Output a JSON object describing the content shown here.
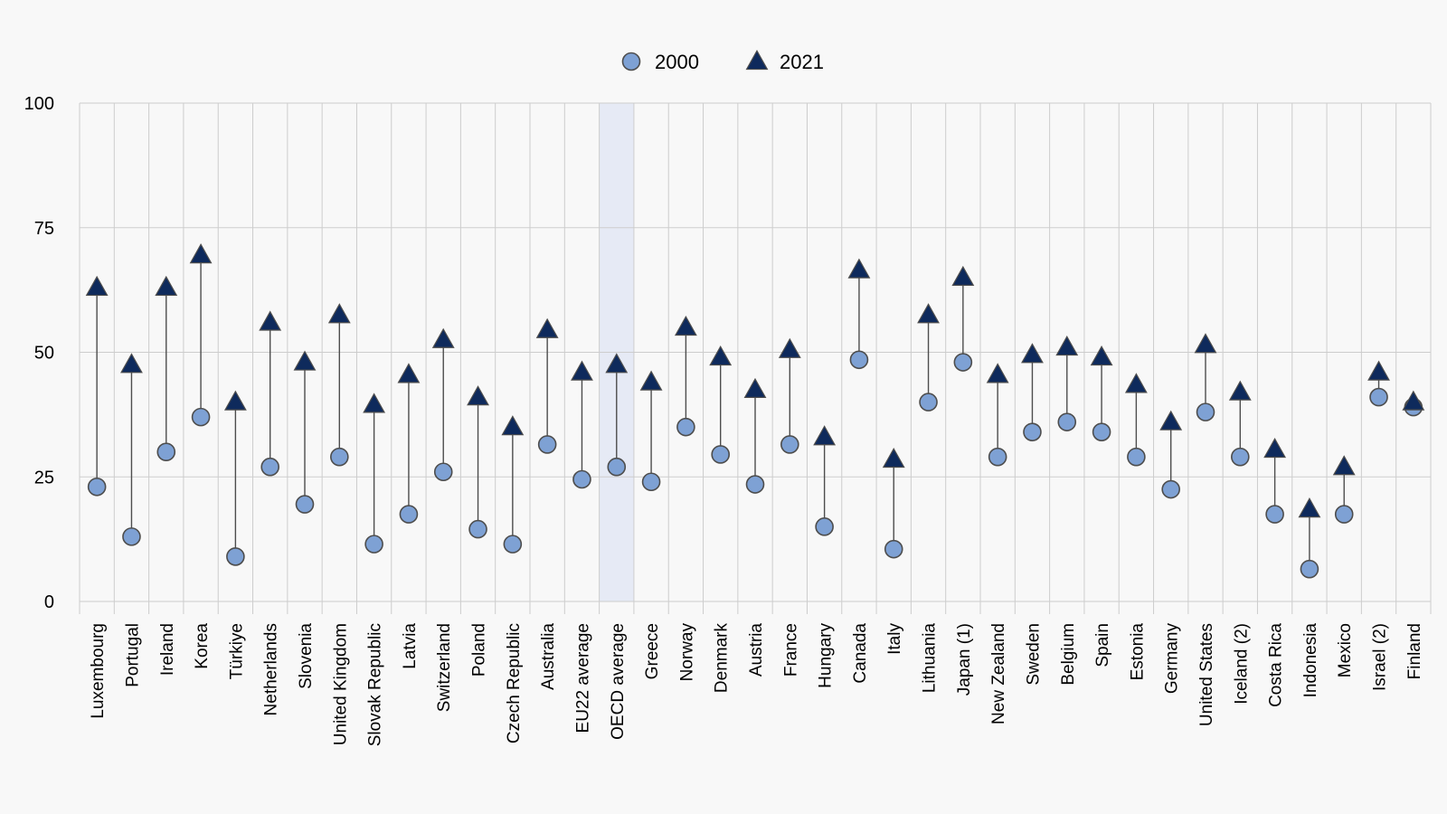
{
  "chart_data": {
    "type": "scatter",
    "title": "",
    "xlabel": "",
    "ylabel": "",
    "ylim": [
      0,
      100
    ],
    "yticks": [
      0,
      25,
      50,
      75,
      100
    ],
    "grid": true,
    "legend_position": "top-center",
    "highlighted_category": "OECD average",
    "categories": [
      "Luxembourg",
      "Portugal",
      "Ireland",
      "Korea",
      "Türkiye",
      "Netherlands",
      "Slovenia",
      "United Kingdom",
      "Slovak Republic",
      "Latvia",
      "Switzerland",
      "Poland",
      "Czech Republic",
      "Australia",
      "EU22 average",
      "OECD average",
      "Greece",
      "Norway",
      "Denmark",
      "Austria",
      "France",
      "Hungary",
      "Canada",
      "Italy",
      "Lithuania",
      "Japan (1)",
      "New Zealand",
      "Sweden",
      "Belgium",
      "Spain",
      "Estonia",
      "Germany",
      "United States",
      "Iceland (2)",
      "Costa Rica",
      "Indonesia",
      "Mexico",
      "Israel (2)",
      "Finland"
    ],
    "series": [
      {
        "name": "2000",
        "marker": "circle",
        "color": "#7ea1d4",
        "values": [
          23,
          13,
          30,
          37,
          9,
          27,
          19.5,
          29,
          11.5,
          17.5,
          26,
          14.5,
          11.5,
          31.5,
          24.5,
          27,
          24,
          35,
          29.5,
          23.5,
          31.5,
          15,
          48.5,
          10.5,
          40,
          48,
          29,
          34,
          36,
          34,
          29,
          22.5,
          38,
          29,
          17.5,
          6.5,
          17.5,
          41,
          39
        ]
      },
      {
        "name": "2021",
        "marker": "triangle",
        "color": "#0e2a5c",
        "values": [
          63,
          47.5,
          63,
          69.5,
          40,
          56,
          48,
          57.5,
          39.5,
          45.5,
          52.5,
          41,
          35,
          54.5,
          46,
          47.5,
          44,
          55,
          49,
          42.5,
          50.5,
          33,
          66.5,
          28.5,
          57.5,
          65,
          45.5,
          49.5,
          51,
          49,
          43.5,
          36,
          51.5,
          42,
          30.5,
          18.5,
          27,
          46,
          40
        ]
      }
    ]
  },
  "colors": {
    "background": "#f8f8f8",
    "grid": "#cdcdcd",
    "highlight": "#e6eaf5",
    "connector": "#4d4d4d",
    "marker_stroke": "#4d4d4d"
  }
}
